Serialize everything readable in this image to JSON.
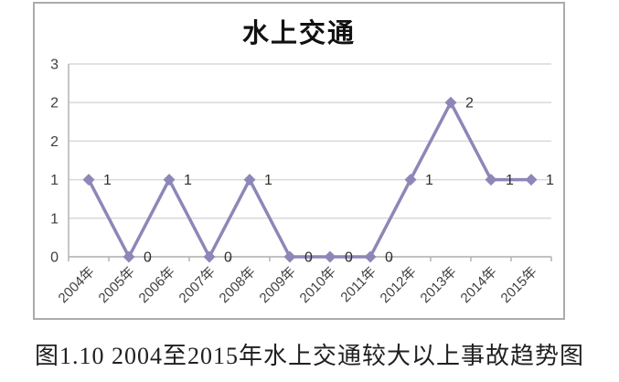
{
  "figure": {
    "caption": "图1.10 2004至2015年水上交通较大以上事故趋势图",
    "background": "#ffffff"
  },
  "chart_data": {
    "type": "line",
    "title": "水上交通",
    "categories": [
      "2004年",
      "2005年",
      "2006年",
      "2007年",
      "2008年",
      "2009年",
      "2010年",
      "2011年",
      "2012年",
      "2013年",
      "2014年",
      "2015年"
    ],
    "values": [
      1,
      0,
      1,
      0,
      1,
      0,
      0,
      0,
      1,
      2,
      1,
      1
    ],
    "data_labels": [
      "1",
      "0",
      "1",
      "0",
      "1",
      "0",
      "0",
      "0",
      "1",
      "2",
      "1",
      "1"
    ],
    "xlabel": "",
    "ylabel": "",
    "ylim": [
      0,
      2.5
    ],
    "y_tick_labels_top_down": [
      "3",
      "2",
      "2",
      "1",
      "1",
      "0"
    ],
    "grid": "horizontal",
    "legend": "none",
    "marker": "diamond",
    "style": {
      "line_color": "#8d87b8",
      "marker_color": "#8d87b8",
      "grid_color": "#d9d9d9",
      "axis_color": "#b3b3b3",
      "tick_label_color": "#3f3f3f",
      "data_label_color": "#303030",
      "frame_border_color": "#ababab"
    }
  }
}
